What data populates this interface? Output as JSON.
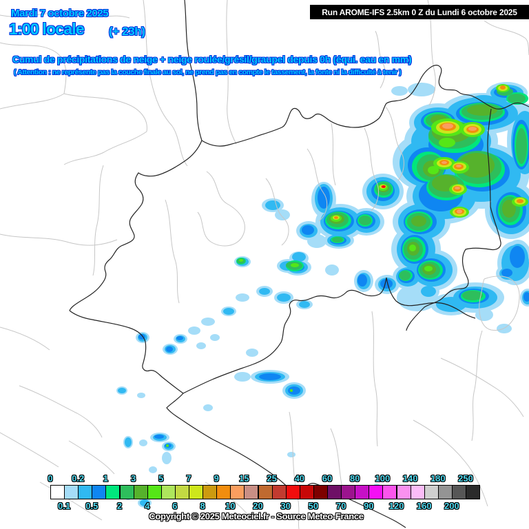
{
  "header": {
    "date": "Mardi 7 octobre 2025",
    "time": "1:00 locale",
    "run_offset": "(+ 23h)",
    "run_info": "Run AROME-IFS 2.5km 0 Z du Lundi 6 octobre 2025",
    "title": "Cumul de précipitations de neige + neige roulée/grésil/graupel depuis 0h (équi. eau en mm)",
    "warning": "( Attention : ne représente pas la couche finale au sol, ne prend pas en compte le tassement, la fonte ni la difficulté à tenir )"
  },
  "legend": {
    "unit": "mm",
    "labels": [
      "0",
      "0.1",
      "0.2",
      "0.5",
      "1",
      "2",
      "3",
      "4",
      "5",
      "6",
      "7",
      "8",
      "9",
      "10",
      "15",
      "20",
      "25",
      "30",
      "40",
      "50",
      "60",
      "70",
      "80",
      "90",
      "100",
      "120",
      "140",
      "160",
      "180",
      "200",
      "250"
    ],
    "cell_colors": [
      "#FFFFFF",
      "#A5DDF8",
      "#30B9F2",
      "#0F86F2",
      "#00E67D",
      "#2EBE5C",
      "#56B22C",
      "#55E617",
      "#AEE65C",
      "#C3D943",
      "#CEE61C",
      "#CC9A0F",
      "#F28D0E",
      "#FA9E5F",
      "#C98F85",
      "#C06A30",
      "#C23B30",
      "#F20D0D",
      "#C80808",
      "#7D0000",
      "#6E1066",
      "#9C138E",
      "#C611C6",
      "#F50FF5",
      "#FA55EC",
      "#FA91F0",
      "#FBBCF8",
      "#CFCFCF",
      "#949494",
      "#575757",
      "#2B2B2B"
    ]
  },
  "footer": {
    "copyright": "Copyright © 2025 Meteociel.fr - Source Meteo-France"
  },
  "colors": {
    "header_text": "#00C8FF",
    "header_outline": "#0030DF",
    "legend_label_text": "#50DAF0",
    "run_box_bg": "#000000",
    "run_box_text": "#FFFFFF",
    "country_border": "#222222",
    "admin_border": "#C6C6C6"
  }
}
